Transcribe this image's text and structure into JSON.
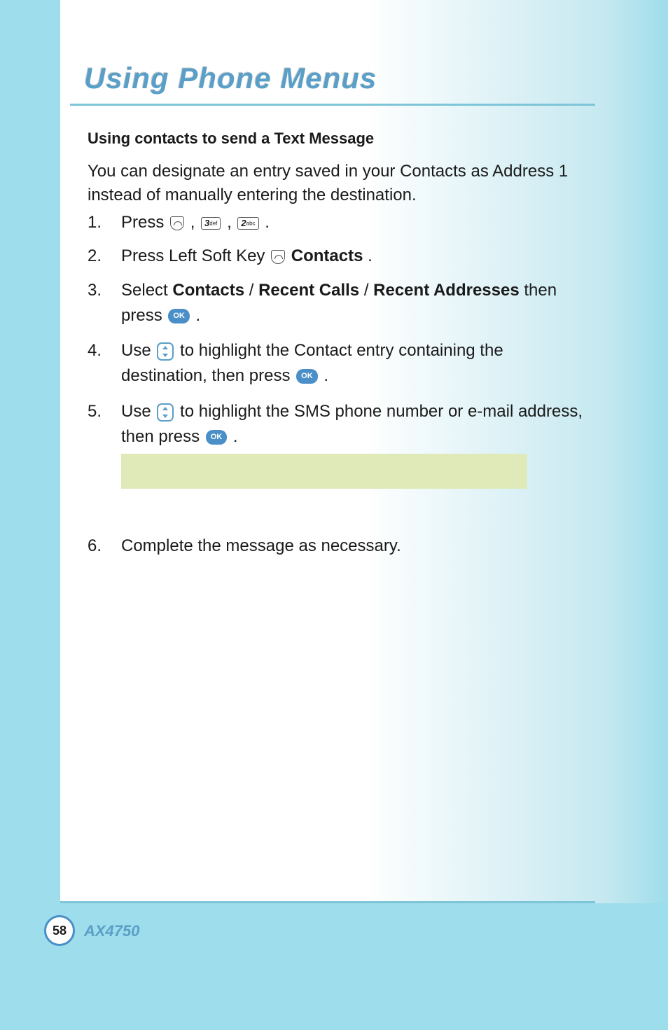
{
  "page": {
    "title": "Using Phone Menus",
    "model": "AX4750",
    "pageNumber": "58"
  },
  "section": {
    "heading": "Using contacts to send a Text Message",
    "intro": "You can designate an entry saved in your Contacts as Address 1 instead of manually entering the destination."
  },
  "steps": {
    "s1": {
      "num": "1.",
      "prefix": "Press ",
      "key1": "3",
      "key1small": "def",
      "key2": "2",
      "key2small": "abc",
      "suffix": " ."
    },
    "s2": {
      "num": "2.",
      "prefix": "Press Left Soft Key ",
      "bold": "Contacts",
      "suffix": "."
    },
    "s3": {
      "num": "3.",
      "prefix": "Select ",
      "b1": "Contacts",
      "sep1": " / ",
      "b2": "Recent Calls",
      "sep2": " / ",
      "b3": "Recent Addresses",
      "after": " then press ",
      "ok": "OK",
      "suffix": " ."
    },
    "s4": {
      "num": "4.",
      "prefix": "Use ",
      "after": " to highlight the Contact entry containing the destination, then press ",
      "ok": "OK",
      "suffix": " ."
    },
    "s5": {
      "num": "5.",
      "prefix": "Use ",
      "after": " to highlight the SMS phone number or e-mail address, then press ",
      "ok": "OK",
      "suffix": " ."
    },
    "s6": {
      "num": "6.",
      "text": "Complete the message as necessary."
    }
  },
  "colors": {
    "accent": "#5a9fc7",
    "lightBlue": "#9eddeb",
    "highlightBox": "#dfeab8",
    "okButton": "#4a8fc7"
  }
}
